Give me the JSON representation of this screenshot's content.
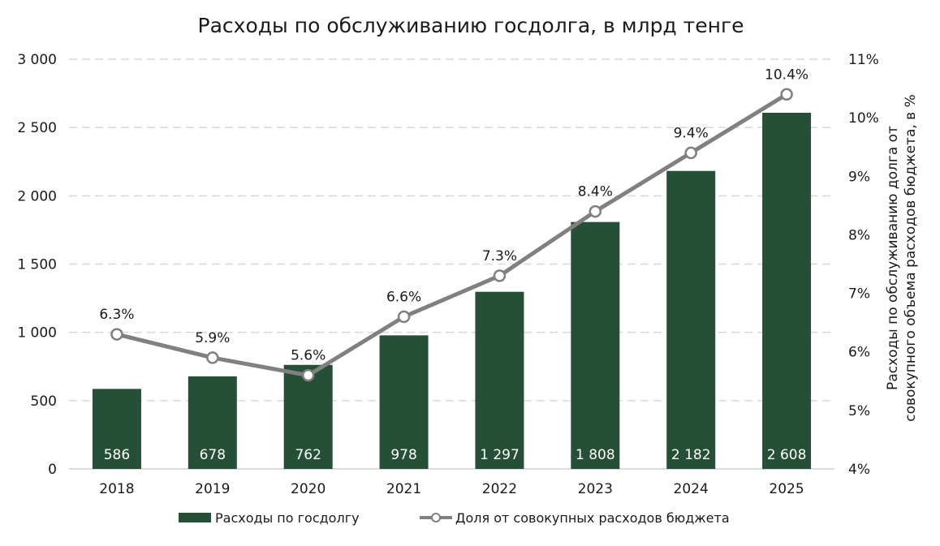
{
  "chart_data": {
    "type": "bar+line",
    "title": "Расходы по обслуживанию госдолга, в млрд тенге",
    "categories": [
      "2018",
      "2019",
      "2020",
      "2021",
      "2022",
      "2023",
      "2024",
      "2025"
    ],
    "series": [
      {
        "name": "Расходы по госдолгу",
        "type": "bar",
        "axis": "left",
        "color": "#264f38",
        "values": [
          586,
          678,
          762,
          978,
          1297,
          1808,
          2182,
          2608
        ],
        "labels": [
          "586",
          "678",
          "762",
          "978",
          "1 297",
          "1 808",
          "2 182",
          "2 608"
        ]
      },
      {
        "name": "Доля от совокупных расходов бюджета",
        "type": "line",
        "axis": "right",
        "color": "#808080",
        "values": [
          6.3,
          5.9,
          5.6,
          6.6,
          7.3,
          8.4,
          9.4,
          10.4
        ],
        "labels": [
          "6.3%",
          "5.9%",
          "5.6%",
          "6.6%",
          "7.3%",
          "8.4%",
          "9.4%",
          "10.4%"
        ]
      }
    ],
    "y_left": {
      "lim": [
        0,
        3000
      ],
      "ticks": [
        0,
        500,
        1000,
        1500,
        2000,
        2500,
        3000
      ],
      "tick_labels": [
        "0",
        "500",
        "1 000",
        "1 500",
        "2 000",
        "2 500",
        "3 000"
      ]
    },
    "y_right": {
      "lim": [
        4,
        11
      ],
      "ticks": [
        4,
        5,
        6,
        7,
        8,
        9,
        10,
        11
      ],
      "tick_labels": [
        "4%",
        "5%",
        "6%",
        "7%",
        "8%",
        "9%",
        "10%",
        "11%"
      ],
      "label_lines": [
        "Расходы по обслуживанию долга от",
        "совокупного объема  расходов бюджета, в %"
      ]
    },
    "grid": true,
    "legend_position": "bottom"
  }
}
